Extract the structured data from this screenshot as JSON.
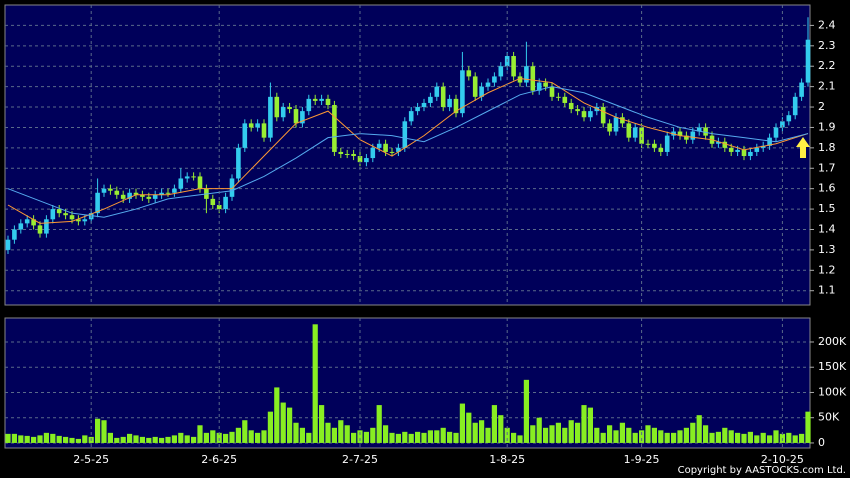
{
  "chart_data": [
    {
      "type": "candlestick",
      "up_color": "#33ccee",
      "down_color": "#99ee33",
      "open": [
        1.3,
        1.35,
        1.4,
        1.43,
        1.45,
        1.42,
        1.38,
        1.45,
        1.5,
        1.48,
        1.47,
        1.45,
        1.44,
        1.45,
        1.48,
        1.58,
        1.6,
        1.59,
        1.57,
        1.55,
        1.58,
        1.57,
        1.56,
        1.55,
        1.57,
        1.58,
        1.58,
        1.6,
        1.65,
        1.66,
        1.66,
        1.6,
        1.55,
        1.52,
        1.5,
        1.56,
        1.65,
        1.8,
        1.92,
        1.9,
        1.92,
        1.85,
        2.05,
        1.95,
        2.0,
        1.99,
        1.92,
        1.98,
        2.04,
        2.03,
        2.04,
        2.01,
        1.78,
        1.77,
        1.77,
        1.76,
        1.73,
        1.75,
        1.8,
        1.82,
        1.78,
        1.78,
        1.8,
        1.93,
        1.98,
        2.0,
        2.02,
        2.05,
        2.1,
        2.0,
        2.04,
        1.97,
        2.18,
        2.15,
        2.05,
        2.1,
        2.12,
        2.15,
        2.2,
        2.25,
        2.15,
        2.12,
        2.2,
        2.08,
        2.12,
        2.1,
        2.05,
        2.05,
        2.02,
        1.99,
        1.98,
        1.95,
        1.98,
        2.0,
        1.92,
        1.88,
        1.95,
        1.92,
        1.85,
        1.9,
        1.82,
        1.82,
        1.8,
        1.78,
        1.86,
        1.88,
        1.86,
        1.84,
        1.88,
        1.9,
        1.86,
        1.82,
        1.83,
        1.8,
        1.78,
        1.79,
        1.76,
        1.78,
        1.8,
        1.81,
        1.85,
        1.9,
        1.93,
        1.96,
        2.05,
        2.12
      ],
      "high": [
        1.37,
        1.42,
        1.45,
        1.47,
        1.47,
        1.44,
        1.47,
        1.52,
        1.52,
        1.5,
        1.49,
        1.47,
        1.47,
        1.5,
        1.65,
        1.62,
        1.62,
        1.61,
        1.59,
        1.6,
        1.6,
        1.59,
        1.58,
        1.59,
        1.6,
        1.6,
        1.62,
        1.7,
        1.68,
        1.68,
        1.68,
        1.62,
        1.57,
        1.54,
        1.58,
        1.67,
        1.82,
        1.94,
        1.94,
        1.94,
        1.94,
        2.12,
        2.07,
        2.02,
        2.02,
        2.01,
        2.0,
        2.06,
        2.06,
        2.06,
        2.06,
        2.03,
        1.8,
        1.79,
        1.79,
        1.78,
        1.77,
        1.82,
        1.84,
        1.84,
        1.8,
        1.82,
        1.95,
        2.0,
        2.02,
        2.04,
        2.07,
        2.12,
        2.12,
        2.06,
        2.06,
        2.27,
        2.2,
        2.17,
        2.12,
        2.14,
        2.17,
        2.22,
        2.27,
        2.27,
        2.17,
        2.32,
        2.22,
        2.14,
        2.14,
        2.12,
        2.07,
        2.07,
        2.04,
        2.01,
        2.0,
        2.0,
        2.02,
        2.02,
        1.94,
        1.97,
        1.97,
        1.94,
        1.92,
        1.92,
        1.84,
        1.84,
        1.82,
        1.88,
        1.9,
        1.9,
        1.88,
        1.9,
        1.92,
        1.92,
        1.88,
        1.85,
        1.85,
        1.82,
        1.81,
        1.81,
        1.8,
        1.82,
        1.83,
        1.87,
        1.92,
        1.95,
        1.98,
        2.07,
        2.14,
        2.44
      ],
      "low": [
        1.28,
        1.33,
        1.38,
        1.41,
        1.4,
        1.36,
        1.36,
        1.43,
        1.46,
        1.45,
        1.43,
        1.42,
        1.42,
        1.43,
        1.46,
        1.56,
        1.57,
        1.55,
        1.53,
        1.53,
        1.55,
        1.54,
        1.53,
        1.53,
        1.55,
        1.56,
        1.56,
        1.58,
        1.63,
        1.64,
        1.58,
        1.48,
        1.5,
        1.48,
        1.48,
        1.54,
        1.63,
        1.78,
        1.88,
        1.88,
        1.83,
        1.83,
        1.93,
        1.93,
        1.97,
        1.9,
        1.9,
        1.96,
        2.01,
        2.01,
        1.99,
        1.76,
        1.75,
        1.75,
        1.74,
        1.71,
        1.71,
        1.73,
        1.78,
        1.76,
        1.76,
        1.76,
        1.78,
        1.91,
        1.96,
        1.98,
        2.0,
        2.03,
        1.98,
        1.98,
        1.95,
        1.95,
        2.13,
        2.03,
        2.03,
        2.08,
        2.1,
        2.13,
        2.18,
        2.13,
        2.1,
        2.1,
        2.06,
        2.06,
        2.08,
        2.03,
        2.03,
        2.0,
        1.97,
        1.96,
        1.93,
        1.93,
        1.96,
        1.9,
        1.86,
        1.86,
        1.9,
        1.83,
        1.83,
        1.8,
        1.8,
        1.78,
        1.76,
        1.76,
        1.84,
        1.84,
        1.82,
        1.82,
        1.86,
        1.84,
        1.8,
        1.8,
        1.78,
        1.76,
        1.76,
        1.74,
        1.74,
        1.76,
        1.78,
        1.79,
        1.83,
        1.88,
        1.91,
        1.94,
        2.03,
        2.1
      ],
      "close": [
        1.35,
        1.4,
        1.43,
        1.45,
        1.42,
        1.38,
        1.45,
        1.5,
        1.48,
        1.47,
        1.45,
        1.44,
        1.45,
        1.48,
        1.58,
        1.6,
        1.59,
        1.57,
        1.55,
        1.58,
        1.57,
        1.56,
        1.55,
        1.57,
        1.58,
        1.58,
        1.6,
        1.65,
        1.66,
        1.66,
        1.6,
        1.55,
        1.52,
        1.5,
        1.56,
        1.65,
        1.8,
        1.92,
        1.9,
        1.92,
        1.85,
        2.05,
        1.95,
        2.0,
        1.99,
        1.92,
        1.98,
        2.04,
        2.03,
        2.04,
        2.01,
        1.78,
        1.77,
        1.77,
        1.76,
        1.73,
        1.75,
        1.8,
        1.82,
        1.78,
        1.78,
        1.8,
        1.93,
        1.98,
        2.0,
        2.02,
        2.05,
        2.1,
        2.0,
        2.04,
        1.97,
        2.18,
        2.15,
        2.05,
        2.1,
        2.12,
        2.15,
        2.2,
        2.25,
        2.15,
        2.12,
        2.2,
        2.08,
        2.12,
        2.1,
        2.05,
        2.05,
        2.02,
        1.99,
        1.98,
        1.95,
        1.98,
        2.0,
        1.92,
        1.88,
        1.95,
        1.92,
        1.85,
        1.9,
        1.82,
        1.82,
        1.8,
        1.78,
        1.86,
        1.88,
        1.86,
        1.84,
        1.88,
        1.9,
        1.86,
        1.82,
        1.83,
        1.8,
        1.78,
        1.79,
        1.76,
        1.78,
        1.8,
        1.81,
        1.85,
        1.9,
        1.93,
        1.96,
        2.05,
        2.12,
        2.33
      ],
      "series": [
        {
          "color": "#ff9933",
          "x": [
            0,
            5,
            10,
            15,
            20,
            25,
            30,
            35,
            40,
            45,
            50,
            55,
            60,
            65,
            70,
            75,
            80,
            85,
            90,
            95,
            100,
            105,
            110,
            115,
            120,
            125
          ],
          "values": [
            1.52,
            1.43,
            1.44,
            1.5,
            1.57,
            1.57,
            1.6,
            1.6,
            1.76,
            1.92,
            1.98,
            1.84,
            1.76,
            1.86,
            1.98,
            2.07,
            2.14,
            2.12,
            2.02,
            1.95,
            1.9,
            1.86,
            1.84,
            1.79,
            1.82,
            1.87
          ]
        },
        {
          "color": "#55aaee",
          "x": [
            0,
            5,
            10,
            15,
            20,
            25,
            30,
            35,
            40,
            45,
            50,
            55,
            60,
            65,
            70,
            75,
            80,
            85,
            90,
            95,
            100,
            105,
            110,
            115,
            120,
            125
          ],
          "values": [
            1.6,
            1.54,
            1.48,
            1.46,
            1.5,
            1.55,
            1.57,
            1.59,
            1.66,
            1.75,
            1.85,
            1.87,
            1.86,
            1.83,
            1.9,
            1.98,
            2.06,
            2.1,
            2.07,
            2.01,
            1.95,
            1.9,
            1.87,
            1.85,
            1.83,
            1.87
          ]
        }
      ],
      "ylim": [
        1.03,
        2.5
      ],
      "yticks": [
        1.1,
        1.2,
        1.3,
        1.4,
        1.5,
        1.6,
        1.7,
        1.8,
        1.9,
        2,
        2.1,
        2.2,
        2.3,
        2.4
      ],
      "grid": true
    },
    {
      "type": "bar",
      "color": "#88ee22",
      "categories": [
        null,
        null,
        null,
        null,
        null,
        null,
        null,
        null,
        null,
        null,
        null,
        null,
        null,
        "2-5-25",
        null,
        null,
        null,
        null,
        null,
        null,
        null,
        null,
        null,
        null,
        null,
        null,
        null,
        null,
        null,
        null,
        null,
        null,
        null,
        "2-6-25",
        null,
        null,
        null,
        null,
        null,
        null,
        null,
        null,
        null,
        null,
        null,
        null,
        null,
        null,
        null,
        null,
        null,
        null,
        null,
        null,
        null,
        "2-7-25",
        null,
        null,
        null,
        null,
        null,
        null,
        null,
        null,
        null,
        null,
        null,
        null,
        null,
        null,
        null,
        null,
        null,
        null,
        null,
        null,
        null,
        null,
        "1-8-25",
        null,
        null,
        null,
        null,
        null,
        null,
        null,
        null,
        null,
        null,
        null,
        null,
        null,
        null,
        null,
        null,
        null,
        null,
        null,
        null,
        "1-9-25",
        null,
        null,
        null,
        null,
        null,
        null,
        null,
        null,
        null,
        null,
        null,
        null,
        null,
        null,
        null,
        null,
        null,
        null,
        null,
        null,
        null,
        "2-10-25",
        null,
        null,
        null,
        null
      ],
      "values": [
        18000,
        18000,
        15000,
        14000,
        12000,
        15000,
        20000,
        18000,
        14000,
        12000,
        10000,
        8000,
        15000,
        12000,
        48000,
        45000,
        20000,
        10000,
        12000,
        18000,
        15000,
        12000,
        10000,
        12000,
        10000,
        12000,
        15000,
        20000,
        15000,
        12000,
        35000,
        20000,
        25000,
        20000,
        18000,
        22000,
        30000,
        45000,
        25000,
        20000,
        25000,
        62000,
        110000,
        80000,
        70000,
        40000,
        30000,
        20000,
        235000,
        75000,
        40000,
        30000,
        45000,
        35000,
        20000,
        25000,
        22000,
        30000,
        75000,
        35000,
        20000,
        18000,
        22000,
        18000,
        22000,
        20000,
        25000,
        25000,
        30000,
        22000,
        20000,
        78000,
        60000,
        40000,
        45000,
        30000,
        75000,
        55000,
        30000,
        20000,
        15000,
        125000,
        35000,
        50000,
        30000,
        35000,
        40000,
        30000,
        45000,
        40000,
        75000,
        70000,
        30000,
        20000,
        35000,
        25000,
        40000,
        30000,
        20000,
        25000,
        35000,
        30000,
        25000,
        20000,
        20000,
        25000,
        30000,
        40000,
        55000,
        35000,
        20000,
        22000,
        30000,
        25000,
        20000,
        18000,
        22000,
        15000,
        20000,
        15000,
        25000,
        18000,
        20000,
        15000,
        18000,
        62000
      ],
      "ylim": [
        -10000,
        247500
      ],
      "yticks": [
        0,
        {
          "value": 50000,
          "label": "50K"
        },
        {
          "value": 100000,
          "label": "100K"
        },
        {
          "value": 150000,
          "label": "150K"
        },
        {
          "value": 200000,
          "label": "200K"
        }
      ],
      "grid": true
    }
  ],
  "footer": "Copyright by AASTOCKS.com Ltd."
}
